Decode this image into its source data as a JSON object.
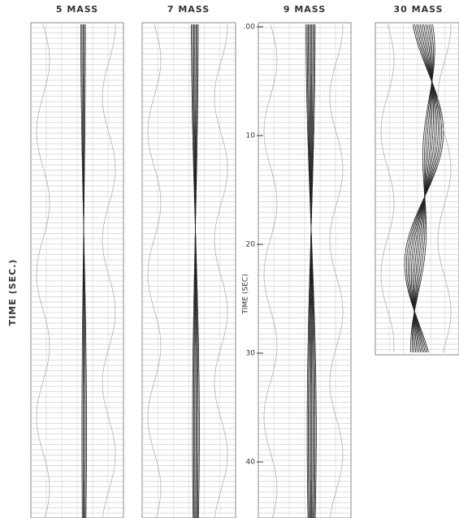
{
  "panels": [
    {
      "title": "5 MASS"
    },
    {
      "title": "7 MASS"
    },
    {
      "title": "9 MASS"
    },
    {
      "title": "30 MASS"
    }
  ],
  "axis_labels": {
    "left": "TIME (SEC.)",
    "middle": "TIME (SEC)"
  },
  "time_ticks": [
    ".00",
    "10",
    "20",
    "30",
    "40"
  ]
}
